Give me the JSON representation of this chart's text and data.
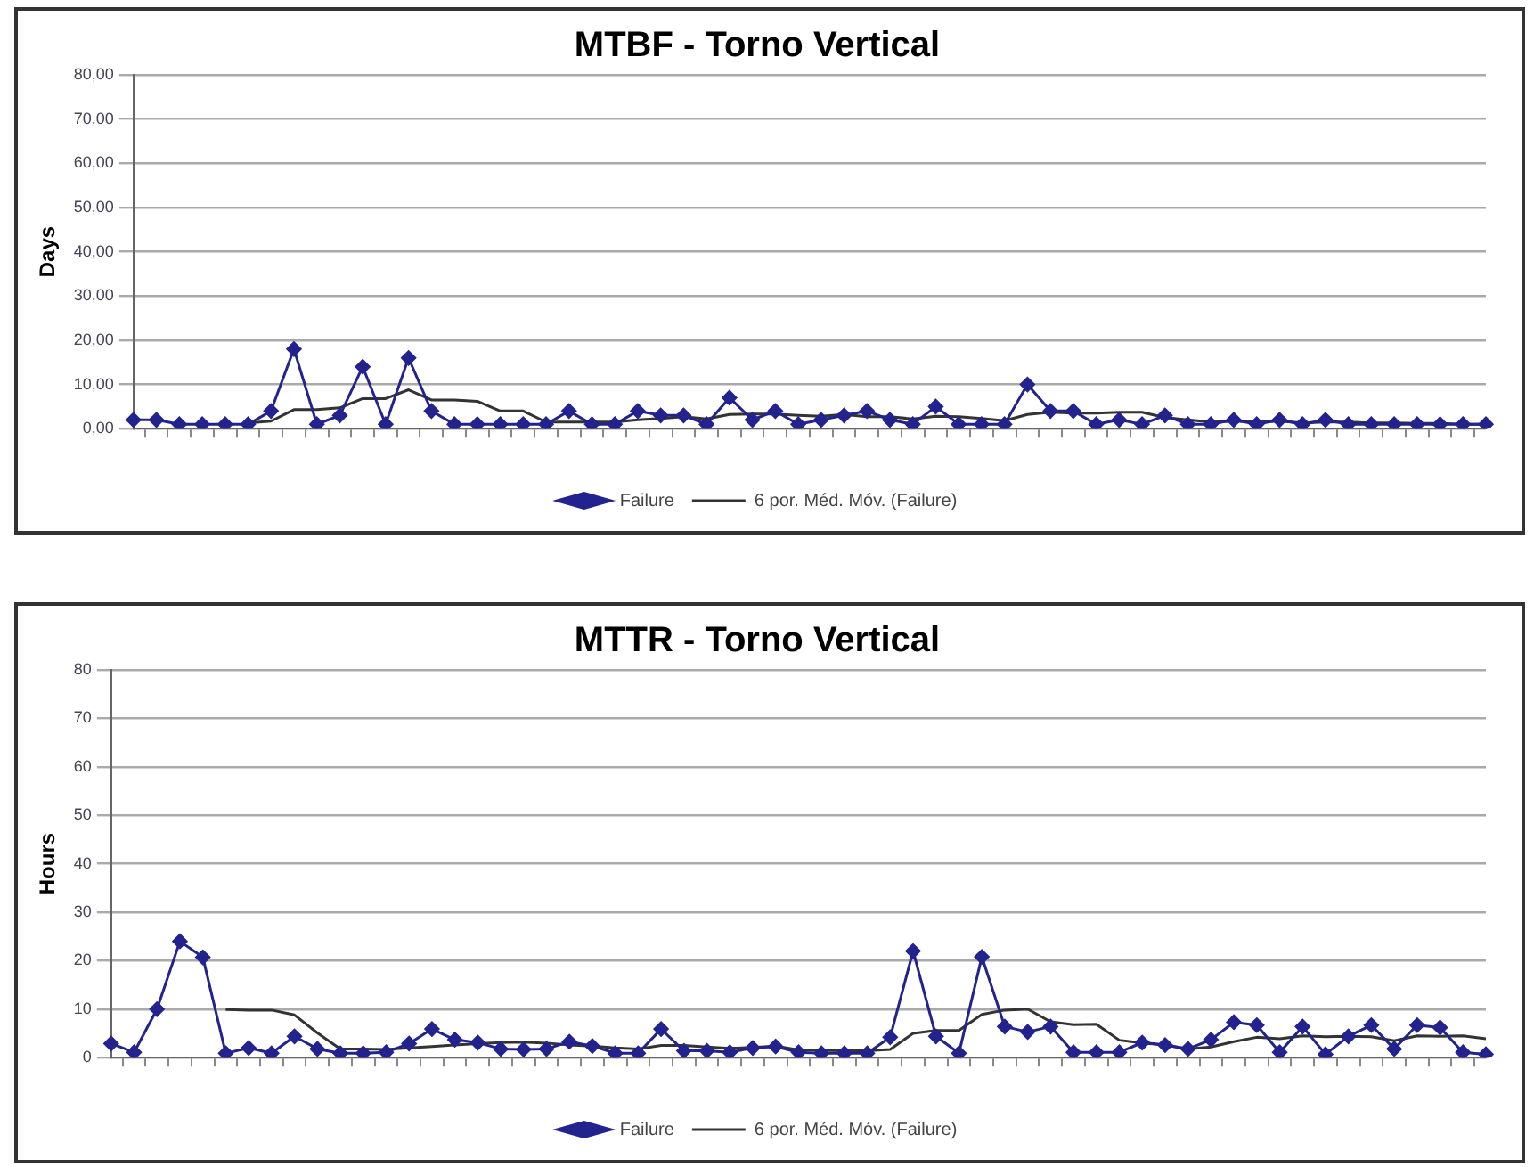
{
  "chart_data": [
    {
      "type": "line",
      "title": "MTBF - Torno Vertical",
      "ylabel": "Days",
      "categories": [
        null,
        null,
        null,
        null,
        null,
        null,
        null,
        null,
        null,
        null,
        null,
        null,
        null,
        null,
        null,
        null,
        null,
        null,
        null,
        null,
        null,
        null,
        null,
        null,
        null,
        null,
        null,
        null,
        null,
        null,
        null,
        null,
        null,
        null,
        null,
        null,
        null,
        null,
        null,
        null,
        null,
        null,
        null,
        null,
        null,
        null,
        null,
        null,
        null,
        null,
        null,
        null,
        null,
        null,
        null,
        null,
        null,
        null,
        null,
        null
      ],
      "series": [
        {
          "name": "Failure",
          "color": "#23238f",
          "marker": "diamond",
          "values": [
            2,
            2,
            1,
            1,
            1,
            1,
            4,
            18,
            1,
            3,
            14,
            1,
            16,
            4,
            1,
            1,
            1,
            1,
            1,
            4,
            1,
            1,
            4,
            3,
            3,
            1,
            7,
            2,
            4,
            1,
            2,
            3,
            4,
            2,
            1,
            5,
            1,
            1,
            1,
            10,
            4,
            4,
            1,
            2,
            1,
            3,
            1,
            1,
            2,
            1,
            2,
            1,
            2,
            1,
            1,
            1,
            1,
            1,
            1,
            1
          ]
        },
        {
          "name": "6 por. Méd. Móv. (Failure)",
          "color": "#333333",
          "marker": "none",
          "values": [
            null,
            null,
            null,
            null,
            null,
            1.3,
            1.7,
            4.3,
            4.3,
            4.7,
            6.8,
            6.8,
            8.8,
            6.5,
            6.5,
            6.2,
            4,
            4,
            1.5,
            1.5,
            1.5,
            1.5,
            2,
            2.3,
            2.7,
            2.2,
            3.2,
            3.3,
            3.3,
            3,
            2.8,
            3.2,
            2.7,
            2.7,
            2.2,
            2.8,
            2.7,
            2.3,
            1.8,
            3.2,
            3.7,
            3.5,
            3.5,
            3.7,
            3.7,
            2.5,
            2,
            1.5,
            1.7,
            1.5,
            1.7,
            1.3,
            1.5,
            1.5,
            1.3,
            1.3,
            1.2,
            1.2,
            1,
            1
          ]
        }
      ],
      "ylim": [
        0,
        80
      ],
      "yticks": [
        {
          "value": 0,
          "label": "0,00"
        },
        {
          "value": 10,
          "label": "10,00"
        },
        {
          "value": 20,
          "label": "20,00"
        },
        {
          "value": 30,
          "label": "30,00"
        },
        {
          "value": 40,
          "label": "40,00"
        },
        {
          "value": 50,
          "label": "50,00"
        },
        {
          "value": 60,
          "label": "60,00"
        },
        {
          "value": 70,
          "label": "70,00"
        },
        {
          "value": 80,
          "label": "80,00"
        }
      ],
      "grid": "y",
      "legend": "bottom",
      "line_style": "solid"
    },
    {
      "type": "line",
      "title": "MTTR - Torno Vertical",
      "ylabel": "Hours",
      "categories": [
        null,
        null,
        null,
        null,
        null,
        null,
        null,
        null,
        null,
        null,
        null,
        null,
        null,
        null,
        null,
        null,
        null,
        null,
        null,
        null,
        null,
        null,
        null,
        null,
        null,
        null,
        null,
        null,
        null,
        null,
        null,
        null,
        null,
        null,
        null,
        null,
        null,
        null,
        null,
        null,
        null,
        null,
        null,
        null,
        null,
        null,
        null,
        null,
        null,
        null,
        null,
        null,
        null,
        null,
        null,
        null,
        null,
        null,
        null,
        null,
        null
      ],
      "series": [
        {
          "name": "Failure",
          "color": "#23238f",
          "marker": "diamond",
          "values": [
            2.9,
            1.1,
            10,
            24,
            20.7,
            0.9,
            2,
            0.9,
            4.4,
            1.8,
            0.9,
            0.9,
            1.1,
            2.9,
            5.9,
            3.7,
            3.1,
            1.8,
            1.7,
            1.8,
            3.3,
            2.4,
            0.9,
            0.9,
            5.9,
            1.4,
            1.4,
            1.1,
            2,
            2.3,
            1.1,
            0.9,
            0.9,
            0.9,
            4.2,
            22,
            4.4,
            0.9,
            20.8,
            6.4,
            5.3,
            6.4,
            1.1,
            1.1,
            1.1,
            3.1,
            2.6,
            1.8,
            3.7,
            7.3,
            6.7,
            1.1,
            6.4,
            0.7,
            4.4,
            6.7,
            1.8,
            6.7,
            6.2,
            1.1,
            0.7
          ]
        },
        {
          "name": "6 por. Méd. Móv. (Failure)",
          "color": "#333333",
          "marker": "none",
          "values": [
            null,
            null,
            null,
            null,
            null,
            9.9,
            9.8,
            9.8,
            8.8,
            5.1,
            1.8,
            1.8,
            1.7,
            2,
            2.3,
            2.6,
            2.9,
            3.1,
            3.2,
            3,
            2.6,
            2.4,
            2,
            1.8,
            2.5,
            2.5,
            2.2,
            1.9,
            2.1,
            2.4,
            1.6,
            1.5,
            1.4,
            1.4,
            1.7,
            5,
            5.6,
            5.6,
            8.9,
            9.8,
            10,
            7.4,
            6.8,
            6.9,
            3.6,
            3,
            2.6,
            1.8,
            2.2,
            3.3,
            4.2,
            3.9,
            4.5,
            4.3,
            4.4,
            4.3,
            3.5,
            4.5,
            4.4,
            4.5,
            3.9
          ]
        }
      ],
      "ylim": [
        0,
        80
      ],
      "yticks": [
        0,
        10,
        20,
        30,
        40,
        50,
        60,
        70,
        80
      ],
      "grid": "y",
      "legend": "bottom",
      "line_style": "solid"
    }
  ]
}
